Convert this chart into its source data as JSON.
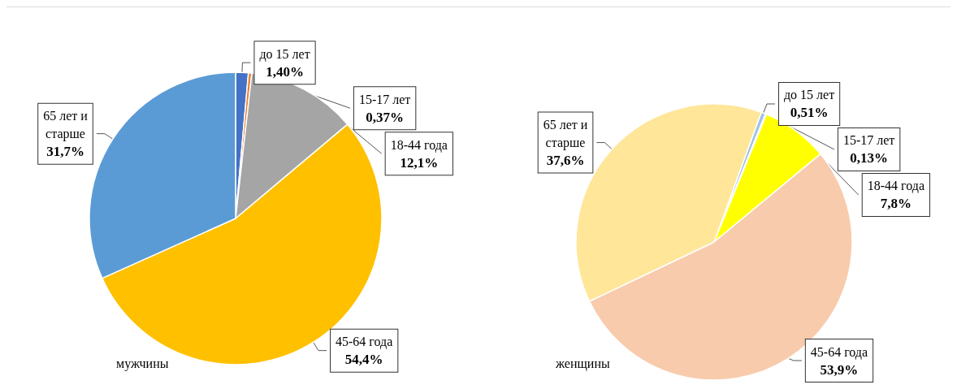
{
  "chart_data": [
    {
      "type": "pie",
      "title": "мужчины",
      "categories": [
        "до 15 лет",
        "15-17 лет",
        "18-44 года",
        "45-64 года",
        "65 лет и старше"
      ],
      "values": [
        1.4,
        0.37,
        12.1,
        54.4,
        31.7
      ],
      "value_labels": [
        "1,40%",
        "0,37%",
        "12,1%",
        "54,4%",
        "31,7%"
      ],
      "colors": [
        "#4472c4",
        "#ed7d31",
        "#a5a5a5",
        "#ffc000",
        "#5b9bd5"
      ],
      "legend": false
    },
    {
      "type": "pie",
      "title": "женщины",
      "categories": [
        "до 15 лет",
        "15-17 лет",
        "18-44 года",
        "45-64 года",
        "65 лет и старше"
      ],
      "values": [
        0.51,
        0.13,
        7.8,
        53.9,
        37.6
      ],
      "value_labels": [
        "0,51%",
        "0,13%",
        "7,8%",
        "53,9%",
        "37,6%"
      ],
      "colors": [
        "#9dc3e6",
        "#bdd7ee",
        "#ffff00",
        "#f8cbad",
        "#ffe699"
      ],
      "legend": false
    }
  ]
}
